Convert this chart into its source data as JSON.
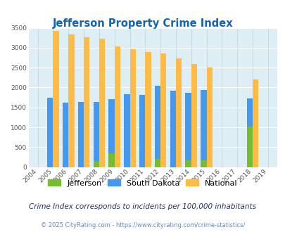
{
  "title": "Jefferson Property Crime Index",
  "years": [
    2004,
    2005,
    2006,
    2007,
    2008,
    2009,
    2010,
    2011,
    2012,
    2013,
    2014,
    2015,
    2016,
    2017,
    2018,
    2019
  ],
  "jefferson": [
    0,
    0,
    0,
    0,
    150,
    350,
    0,
    0,
    200,
    0,
    175,
    175,
    0,
    0,
    1020,
    0
  ],
  "south_dakota": [
    0,
    1750,
    1620,
    1640,
    1640,
    1700,
    1840,
    1820,
    2050,
    1920,
    1870,
    1940,
    0,
    0,
    1720,
    0
  ],
  "national": [
    0,
    3420,
    3330,
    3260,
    3220,
    3040,
    2960,
    2900,
    2860,
    2730,
    2600,
    2500,
    0,
    0,
    2200,
    0
  ],
  "jefferson_color": "#77bb33",
  "south_dakota_color": "#4499ee",
  "national_color": "#ffbb44",
  "plot_bg_color": "#ddeef5",
  "grid_color": "#bbccdd",
  "ylim": [
    0,
    3500
  ],
  "yticks": [
    0,
    500,
    1000,
    1500,
    2000,
    2500,
    3000,
    3500
  ],
  "subtitle": "Crime Index corresponds to incidents per 100,000 inhabitants",
  "footer": "© 2025 CityRating.com - https://www.cityrating.com/crime-statistics/",
  "bar_width": 0.38,
  "title_color": "#1166bb",
  "subtitle_color": "#223366",
  "footer_color": "#6688aa"
}
